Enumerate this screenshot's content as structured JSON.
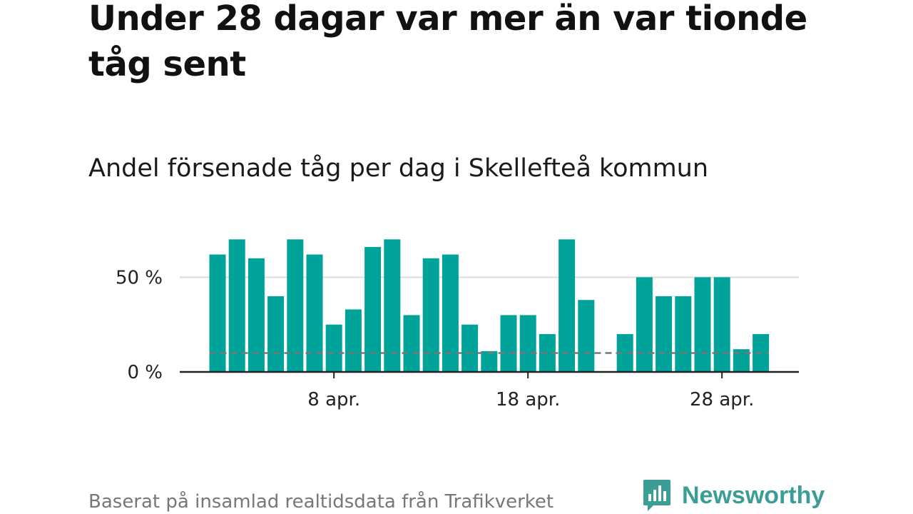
{
  "title": "Under 28 dagar var mer än var tionde tåg sent",
  "subtitle": "Andel försenade tåg per dag i Skellefteå kommun",
  "footer": "Baserat på insamlad realtidsdata från Trafikverket",
  "brand": {
    "name": "Newsworthy",
    "logo_icon": "bar-chart-speech-bubble-icon",
    "color": "#3a9e96"
  },
  "colors": {
    "bar": "#00a39a",
    "reference_line": "#777777",
    "grid": "#dddddd",
    "axis": "#222222"
  },
  "chart_data": {
    "type": "bar",
    "title": "Andel försenade tåg per dag i Skellefteå kommun",
    "xlabel": "",
    "ylabel": "",
    "unit": "%",
    "ylim": [
      0,
      72
    ],
    "grid": true,
    "yticks": [
      {
        "value": 0,
        "label": "0 %"
      },
      {
        "value": 50,
        "label": "50 %"
      }
    ],
    "xticks": [
      {
        "day": 8,
        "label": "8 apr."
      },
      {
        "day": 18,
        "label": "18 apr."
      },
      {
        "day": 28,
        "label": "28 apr."
      }
    ],
    "days": [
      2,
      3,
      4,
      5,
      6,
      7,
      8,
      9,
      10,
      11,
      12,
      13,
      14,
      15,
      16,
      17,
      18,
      19,
      20,
      21,
      22,
      23,
      24,
      25,
      26,
      27,
      28,
      29,
      30
    ],
    "values": [
      62,
      70,
      60,
      40,
      70,
      62,
      25,
      33,
      66,
      70,
      30,
      60,
      62,
      25,
      11,
      30,
      30,
      20,
      70,
      38,
      0,
      20,
      50,
      40,
      40,
      50,
      50,
      12,
      20
    ],
    "reference_line": {
      "value": 10,
      "style": "dashed"
    }
  }
}
